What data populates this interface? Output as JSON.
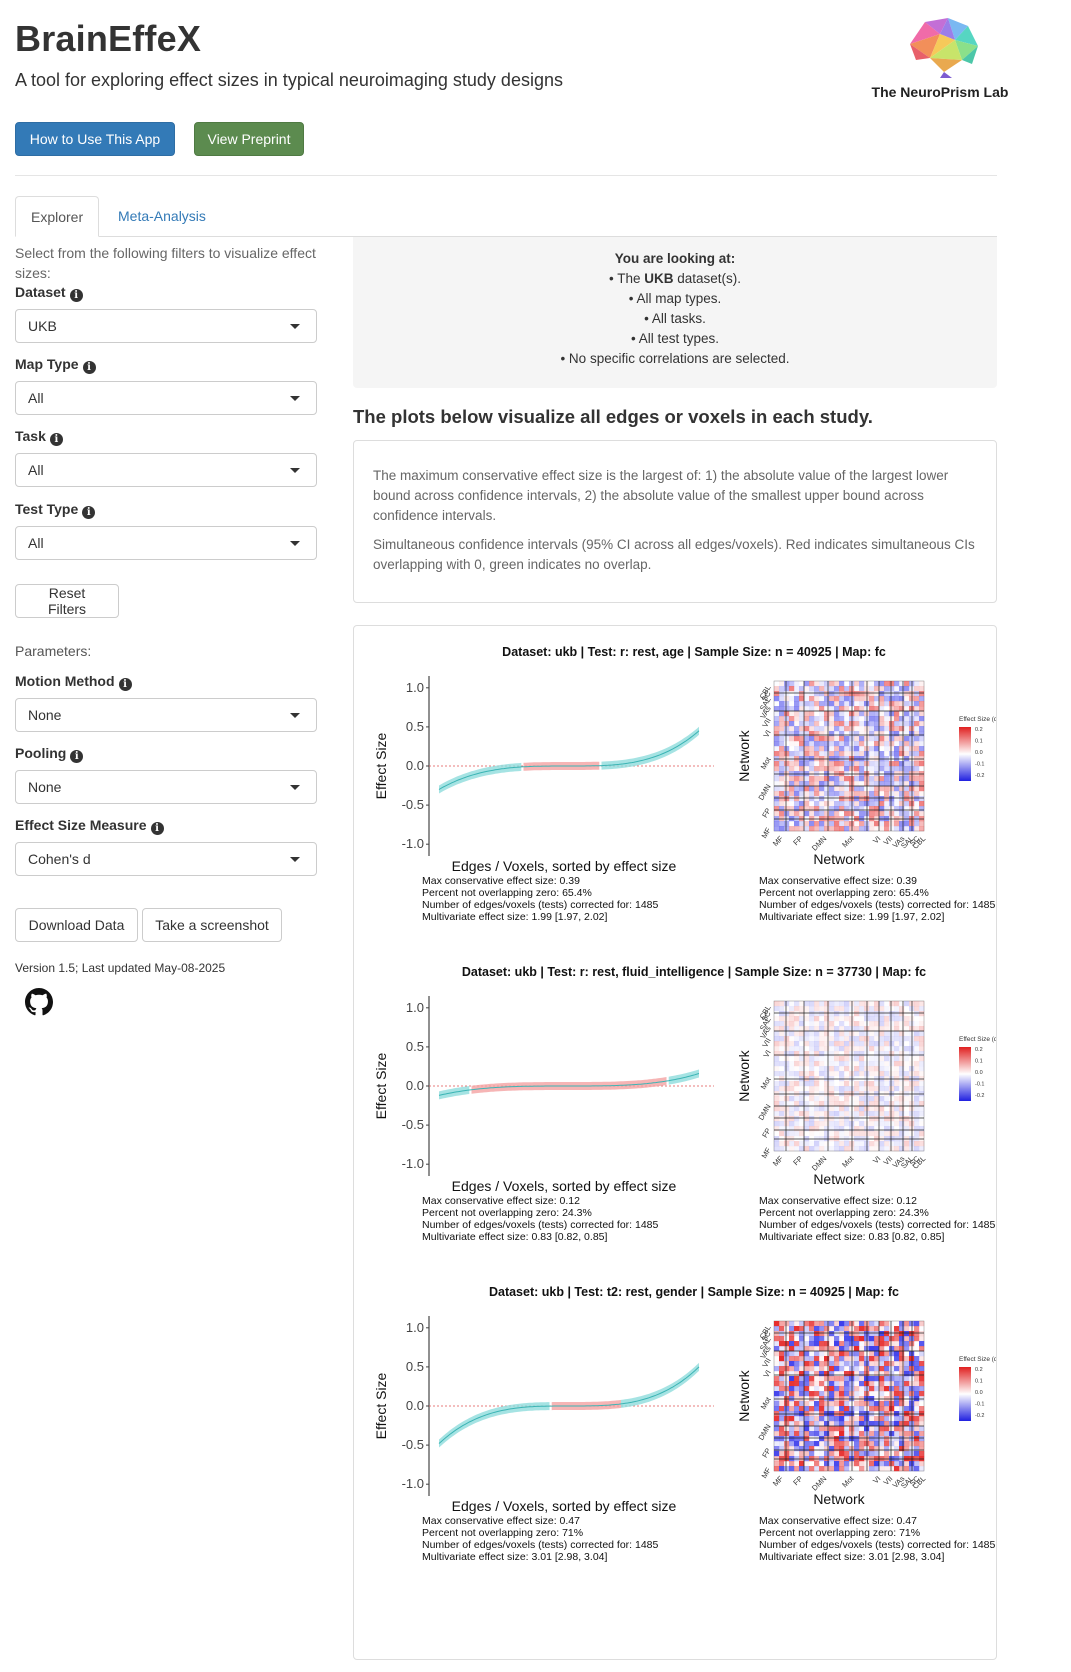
{
  "header": {
    "title": "BrainEffeX",
    "subtitle": "A tool for exploring effect sizes in typical neuroimaging study designs",
    "logo_text": "The NeuroPrism Lab",
    "how_to_button": "How to Use This App",
    "preprint_button": "View Preprint"
  },
  "tabs": [
    {
      "label": "Explorer",
      "active": true
    },
    {
      "label": "Meta-Analysis",
      "active": false
    }
  ],
  "sidebar": {
    "help_text": "Select from the following filters to visualize effect sizes:",
    "filters": [
      {
        "label": "Dataset",
        "value": "UKB"
      },
      {
        "label": "Map Type",
        "value": "All"
      },
      {
        "label": "Task",
        "value": "All"
      },
      {
        "label": "Test Type",
        "value": "All"
      }
    ],
    "reset_button": "Reset Filters",
    "parameters_label": "Parameters:",
    "parameters": [
      {
        "label": "Motion Method",
        "value": "None"
      },
      {
        "label": "Pooling",
        "value": "None"
      },
      {
        "label": "Effect Size Measure",
        "value": "Cohen's d"
      }
    ],
    "download_button": "Download Data",
    "screenshot_button": "Take a screenshot",
    "version": "Version 1.5; Last updated May-08-2025",
    "info_glyph": "i"
  },
  "looking_at": {
    "title": "You are looking at:",
    "line1_pre": "• The ",
    "line1_bold": "UKB",
    "line1_post": " dataset(s).",
    "line2": "• All map types.",
    "line3": "• All tasks.",
    "line4": "• All test types.",
    "line5": "• No specific correlations are selected."
  },
  "plots_heading": "The plots below visualize all edges or voxels in each study.",
  "description": {
    "p1": "The maximum conservative effect size is the largest of: 1) the absolute value of the largest lower bound across confidence intervals, 2) the absolute value of the smallest upper bound across confidence intervals.",
    "p2": "Simultaneous confidence intervals (95% CI across all edges/voxels). Red indicates simultaneous CIs overlapping with 0, green indicates no overlap."
  },
  "colors": {
    "overlap_zero": "#f4a3a3",
    "no_overlap": "#8fdcdc",
    "line_overlap": "#e85c5c",
    "line_no_overlap": "#3bb4b4"
  },
  "chart_labels": {
    "y_axis_label": "Effect Size",
    "x_axis_label": "Edges / Voxels, sorted by effect size",
    "y_ticks": [
      "1.0",
      "0.5",
      "0.0",
      "-0.5",
      "-1.0"
    ],
    "matrix_y_label": "Network",
    "matrix_x_label": "Network",
    "network_labels": [
      "MF",
      "FP",
      "DMN",
      "Mot",
      "VI",
      "VII",
      "VAs",
      "SAL",
      "SC",
      "CBL"
    ],
    "legend_title": "Effect Size (d)",
    "legend_ticks": [
      "0.2",
      "0.1",
      "0.0",
      "-0.1",
      "-0.2"
    ]
  },
  "chart_data": [
    {
      "type": "line",
      "title": "Dataset: ukb   |  Test: r: rest, age   |   Sample Size: n = 40925   |  Map: fc",
      "ylim": [
        -1.0,
        1.0
      ],
      "curve_low": -0.3,
      "curve_high": 0.45,
      "red_start": 0.32,
      "red_end": 0.62,
      "matrix_intensity": 0.55,
      "stats": [
        "Max conservative effect size: 0.39",
        "Percent not overlapping zero: 65.4%",
        "Number of edges/voxels (tests) corrected for: 1485",
        "Multivariate effect size: 1.99 [1.97, 2.02]"
      ]
    },
    {
      "type": "line",
      "title": "Dataset: ukb   |  Test: r: rest, fluid_intelligence   |   Sample Size: n = 37730   |  Map: fc",
      "ylim": [
        -1.0,
        1.0
      ],
      "curve_low": -0.12,
      "curve_high": 0.16,
      "red_start": 0.12,
      "red_end": 0.88,
      "matrix_intensity": 0.2,
      "stats": [
        "Max conservative effect size: 0.12",
        "Percent not overlapping zero: 24.3%",
        "Number of edges/voxels (tests) corrected for: 1485",
        "Multivariate effect size: 0.83 [0.82, 0.85]"
      ]
    },
    {
      "type": "line",
      "title": "Dataset: ukb   |  Test: t2: rest, gender   |   Sample Size: n = 40925   |  Map: fc",
      "ylim": [
        -1.0,
        1.0
      ],
      "curve_low": -0.48,
      "curve_high": 0.5,
      "red_start": 0.43,
      "red_end": 0.7,
      "matrix_intensity": 0.9,
      "stats": [
        "Max conservative effect size: 0.47",
        "Percent not overlapping zero: 71%",
        "Number of edges/voxels (tests) corrected for: 1485",
        "Multivariate effect size: 3.01 [2.98, 3.04]"
      ]
    }
  ]
}
